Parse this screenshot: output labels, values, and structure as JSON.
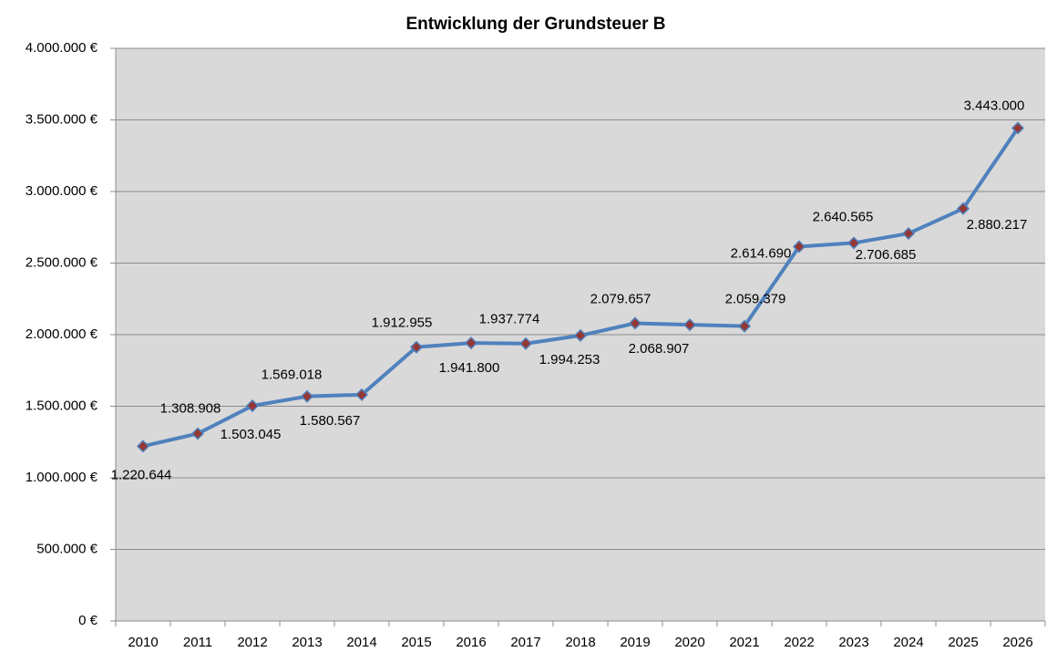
{
  "chart_data": {
    "type": "line",
    "title": "Entwicklung der Grundsteuer B",
    "categories": [
      "2010",
      "2011",
      "2012",
      "2013",
      "2014",
      "2015",
      "2016",
      "2017",
      "2018",
      "2019",
      "2020",
      "2021",
      "2022",
      "2023",
      "2024",
      "2025",
      "2026"
    ],
    "series": [
      {
        "name": "Grundsteuer B",
        "color": "#4f81bd",
        "marker_color": "#953735",
        "values": [
          1220644,
          1308908,
          1503045,
          1569018,
          1580567,
          1912955,
          1941800,
          1937774,
          1994253,
          2079657,
          2068907,
          2059379,
          2614690,
          2640565,
          2706685,
          2880217,
          3443000
        ],
        "value_labels": [
          "1.220.644",
          "1.308.908",
          "1.503.045",
          "1.569.018",
          "1.580.567",
          "1.912.955",
          "1.941.800",
          "1.937.774",
          "1.994.253",
          "2.079.657",
          "2.068.907",
          "2.059.379",
          "2.614.690",
          "2.640.565",
          "2.706.685",
          "2.880.217",
          "3.443.000"
        ]
      }
    ],
    "ylim": [
      0,
      4000000
    ],
    "yticks": [
      {
        "value": 0,
        "label": "0 €"
      },
      {
        "value": 500000,
        "label": "500.000 €"
      },
      {
        "value": 1000000,
        "label": "1.000.000 €"
      },
      {
        "value": 1500000,
        "label": "1.500.000 €"
      },
      {
        "value": 2000000,
        "label": "2.000.000 €"
      },
      {
        "value": 2500000,
        "label": "2.500.000 €"
      },
      {
        "value": 3000000,
        "label": "3.000.000 €"
      },
      {
        "value": 3500000,
        "label": "3.500.000 €"
      },
      {
        "value": 4000000,
        "label": "4.000.000 €"
      }
    ],
    "grid": true,
    "plot_background": "#d9d9d9"
  }
}
